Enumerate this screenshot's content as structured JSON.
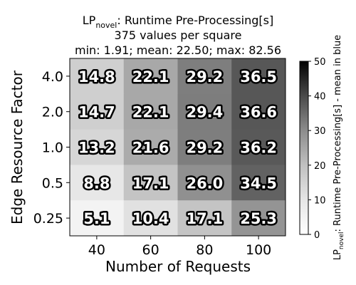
{
  "chart_data": {
    "type": "heatmap",
    "title": {
      "main": "LP",
      "sub": "novel",
      "rest": ": Runtime Pre-Processing[s]"
    },
    "subtitle_lines": [
      "375 values per square",
      "min: 1.91; mean: 22.50; max: 82.56"
    ],
    "xlabel": "Number of Requests",
    "ylabel": "Edge Resource Factor",
    "x_categories": [
      "40",
      "60",
      "80",
      "100"
    ],
    "y_categories": [
      "4.0",
      "2.0",
      "1.0",
      "0.5",
      "0.25"
    ],
    "values": [
      [
        14.8,
        22.1,
        29.2,
        36.5
      ],
      [
        14.7,
        22.1,
        29.4,
        36.6
      ],
      [
        13.2,
        21.6,
        29.2,
        36.2
      ],
      [
        8.8,
        17.1,
        26.0,
        34.5
      ],
      [
        5.1,
        10.4,
        17.1,
        25.3
      ]
    ],
    "labels": [
      [
        "14.8",
        "22.1",
        "29.2",
        "36.5"
      ],
      [
        "14.7",
        "22.1",
        "29.4",
        "36.6"
      ],
      [
        "13.2",
        "21.6",
        "29.2",
        "36.2"
      ],
      [
        "8.8",
        "17.1",
        "26.0",
        "34.5"
      ],
      [
        "5.1",
        "10.4",
        "17.1",
        "25.3"
      ]
    ],
    "colorbar": {
      "min": 0,
      "max": 50,
      "ticks": [
        "0",
        "10",
        "20",
        "30",
        "40",
        "50"
      ],
      "label_main": "LP",
      "label_sub": "novel",
      "label_rest": ": Runtime Pre-Processing[s] - mean in blue",
      "colormap": "Greys"
    }
  }
}
